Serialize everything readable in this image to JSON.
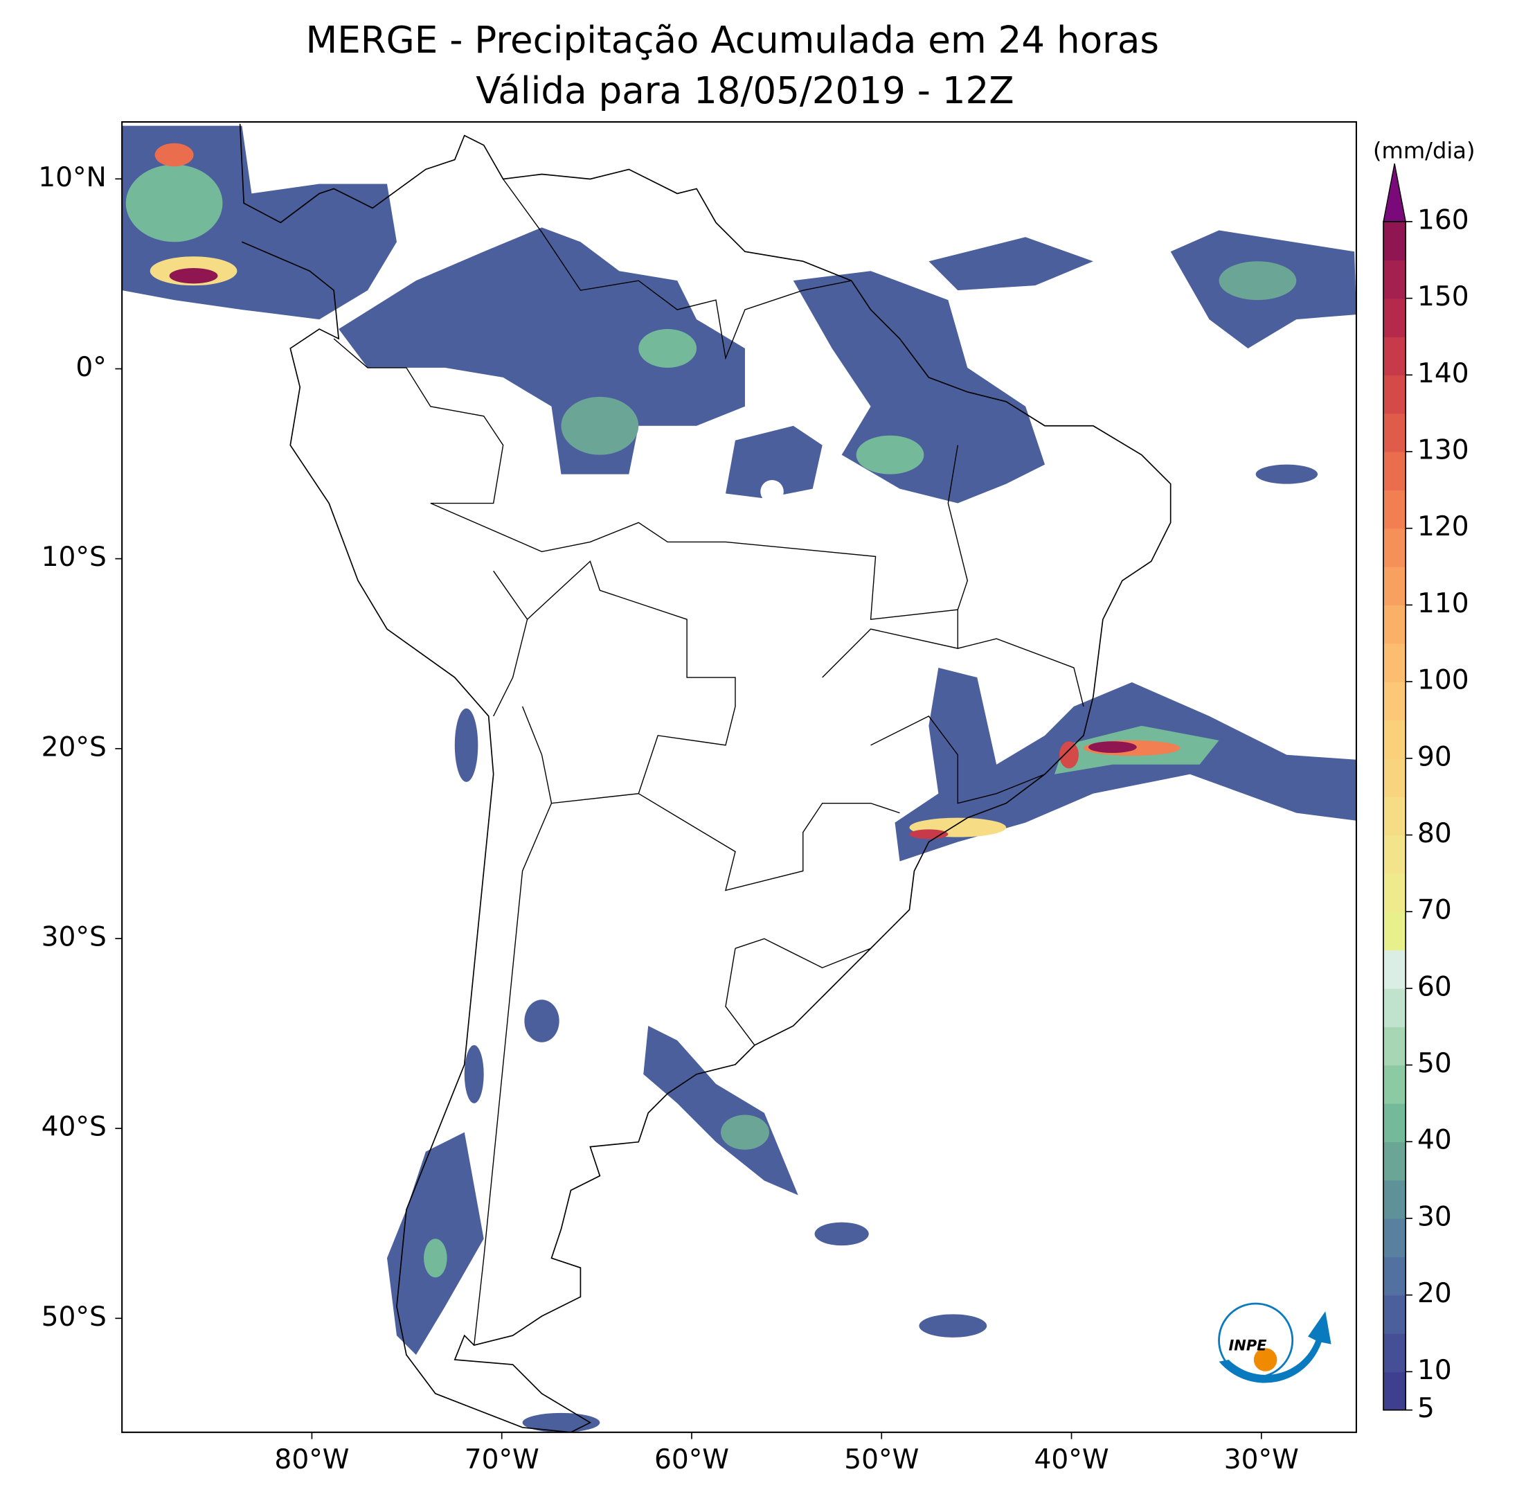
{
  "chart_data": {
    "type": "map",
    "title": "MERGE - Precipitação Acumulada em 24 horas",
    "subtitle": "Válida para 18/05/2019 - 12Z",
    "xlim": [
      -90,
      -25
    ],
    "ylim": [
      -56,
      13
    ],
    "xticks": [
      {
        "value": -80,
        "label": "80°W"
      },
      {
        "value": -70,
        "label": "70°W"
      },
      {
        "value": -60,
        "label": "60°W"
      },
      {
        "value": -50,
        "label": "50°W"
      },
      {
        "value": -40,
        "label": "40°W"
      },
      {
        "value": -30,
        "label": "30°W"
      }
    ],
    "yticks": [
      {
        "value": 10,
        "label": "10°N"
      },
      {
        "value": 0,
        "label": "0°"
      },
      {
        "value": -10,
        "label": "10°S"
      },
      {
        "value": -20,
        "label": "20°S"
      },
      {
        "value": -30,
        "label": "30°S"
      },
      {
        "value": -40,
        "label": "40°S"
      },
      {
        "value": -50,
        "label": "50°S"
      }
    ],
    "colorbar": {
      "label": "(mm/dia)",
      "lim": [
        5,
        160
      ],
      "ticks": [
        5,
        10,
        20,
        30,
        40,
        50,
        60,
        70,
        80,
        90,
        100,
        110,
        120,
        130,
        140,
        150,
        160
      ],
      "levels": [
        5,
        10,
        15,
        20,
        25,
        30,
        35,
        40,
        45,
        50,
        55,
        60,
        65,
        70,
        75,
        80,
        85,
        90,
        95,
        100,
        105,
        110,
        115,
        120,
        125,
        130,
        135,
        140,
        145,
        150,
        155,
        160
      ],
      "colors": [
        "#3f3f8f",
        "#454f96",
        "#4b5f9c",
        "#5270a0",
        "#5a80a0",
        "#5f9199",
        "#6aa596",
        "#74b99a",
        "#8ccaa4",
        "#a6d6b4",
        "#c0e3cd",
        "#dbeee6",
        "#e8f08c",
        "#efeb8c",
        "#f3e38a",
        "#f6dc84",
        "#f8d47e",
        "#fbd07a",
        "#fcc878",
        "#fcbd70",
        "#fbb068",
        "#f8a05f",
        "#f59058",
        "#f17f52",
        "#ea6e4d",
        "#e05c4a",
        "#d44a48",
        "#c63a49",
        "#b52a4b",
        "#a3204f",
        "#8f1651"
      ],
      "extend_color": "#7a0a7a"
    },
    "logo_text": "INPE"
  }
}
